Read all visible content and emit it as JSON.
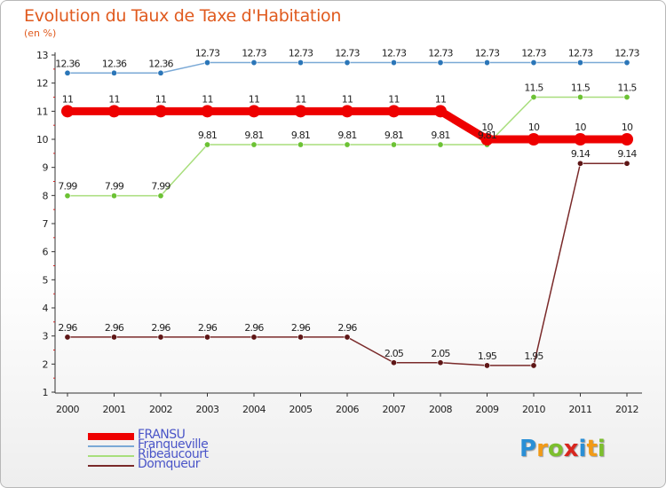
{
  "header": {
    "title": "Evolution du Taux de Taxe d'Habitation",
    "subtitle": "(en %)"
  },
  "logo": {
    "letters": [
      "P",
      "r",
      "o",
      "x",
      "i",
      "t",
      "i"
    ],
    "colors": [
      "#2a8fd6",
      "#f29a16",
      "#7cbf2e",
      "#d8261e",
      "#2a8fd6",
      "#f29a16",
      "#7cbf2e"
    ]
  },
  "chart_data": {
    "type": "line",
    "title": "Evolution du Taux de Taxe d'Habitation",
    "ylabel": "(en %)",
    "xlabel": "",
    "x": [
      "2000",
      "2001",
      "2002",
      "2003",
      "2004",
      "2005",
      "2006",
      "2007",
      "2008",
      "2009",
      "2010",
      "2011",
      "2012"
    ],
    "ylim": [
      1,
      13
    ],
    "yticks": [
      "1",
      "2",
      "3",
      "4",
      "5",
      "6",
      "7",
      "8",
      "9",
      "10",
      "11",
      "12",
      "13"
    ],
    "grid": false,
    "legend_position": "bottom-left",
    "series": [
      {
        "name": "FRANSU",
        "color": "#ee0000",
        "marker_color": "#ee0000",
        "emphasis": true,
        "values": [
          11,
          11,
          11,
          11,
          11,
          11,
          11,
          11,
          11,
          10,
          10,
          10,
          10
        ],
        "labels": [
          "11",
          "11",
          "11",
          "11",
          "11",
          "11",
          "11",
          "11",
          "11",
          "10",
          "10",
          "10",
          "10"
        ]
      },
      {
        "name": "Franqueville",
        "color": "#7aa9d6",
        "marker_color": "#2b76b8",
        "values": [
          12.36,
          12.36,
          12.36,
          12.73,
          12.73,
          12.73,
          12.73,
          12.73,
          12.73,
          12.73,
          12.73,
          12.73,
          12.73
        ],
        "labels": [
          "12.36",
          "12.36",
          "12.36",
          "12.73",
          "12.73",
          "12.73",
          "12.73",
          "12.73",
          "12.73",
          "12.73",
          "12.73",
          "12.73",
          "12.73"
        ]
      },
      {
        "name": "Ribeaucourt",
        "color": "#a8de7c",
        "marker_color": "#6cc234",
        "values": [
          7.99,
          7.99,
          7.99,
          9.81,
          9.81,
          9.81,
          9.81,
          9.81,
          9.81,
          9.81,
          11.5,
          11.5,
          11.5
        ],
        "labels": [
          "7.99",
          "7.99",
          "7.99",
          "9.81",
          "9.81",
          "9.81",
          "9.81",
          "9.81",
          "9.81",
          "9.81",
          "11.5",
          "11.5",
          "11.5"
        ]
      },
      {
        "name": "Domqueur",
        "color": "#7a2a2a",
        "marker_color": "#5e1616",
        "values": [
          2.96,
          2.96,
          2.96,
          2.96,
          2.96,
          2.96,
          2.96,
          2.05,
          2.05,
          1.95,
          1.95,
          9.14,
          9.14
        ],
        "labels": [
          "2.96",
          "2.96",
          "2.96",
          "2.96",
          "2.96",
          "2.96",
          "2.96",
          "2.05",
          "2.05",
          "1.95",
          "1.95",
          "9.14",
          "9.14"
        ]
      }
    ]
  }
}
